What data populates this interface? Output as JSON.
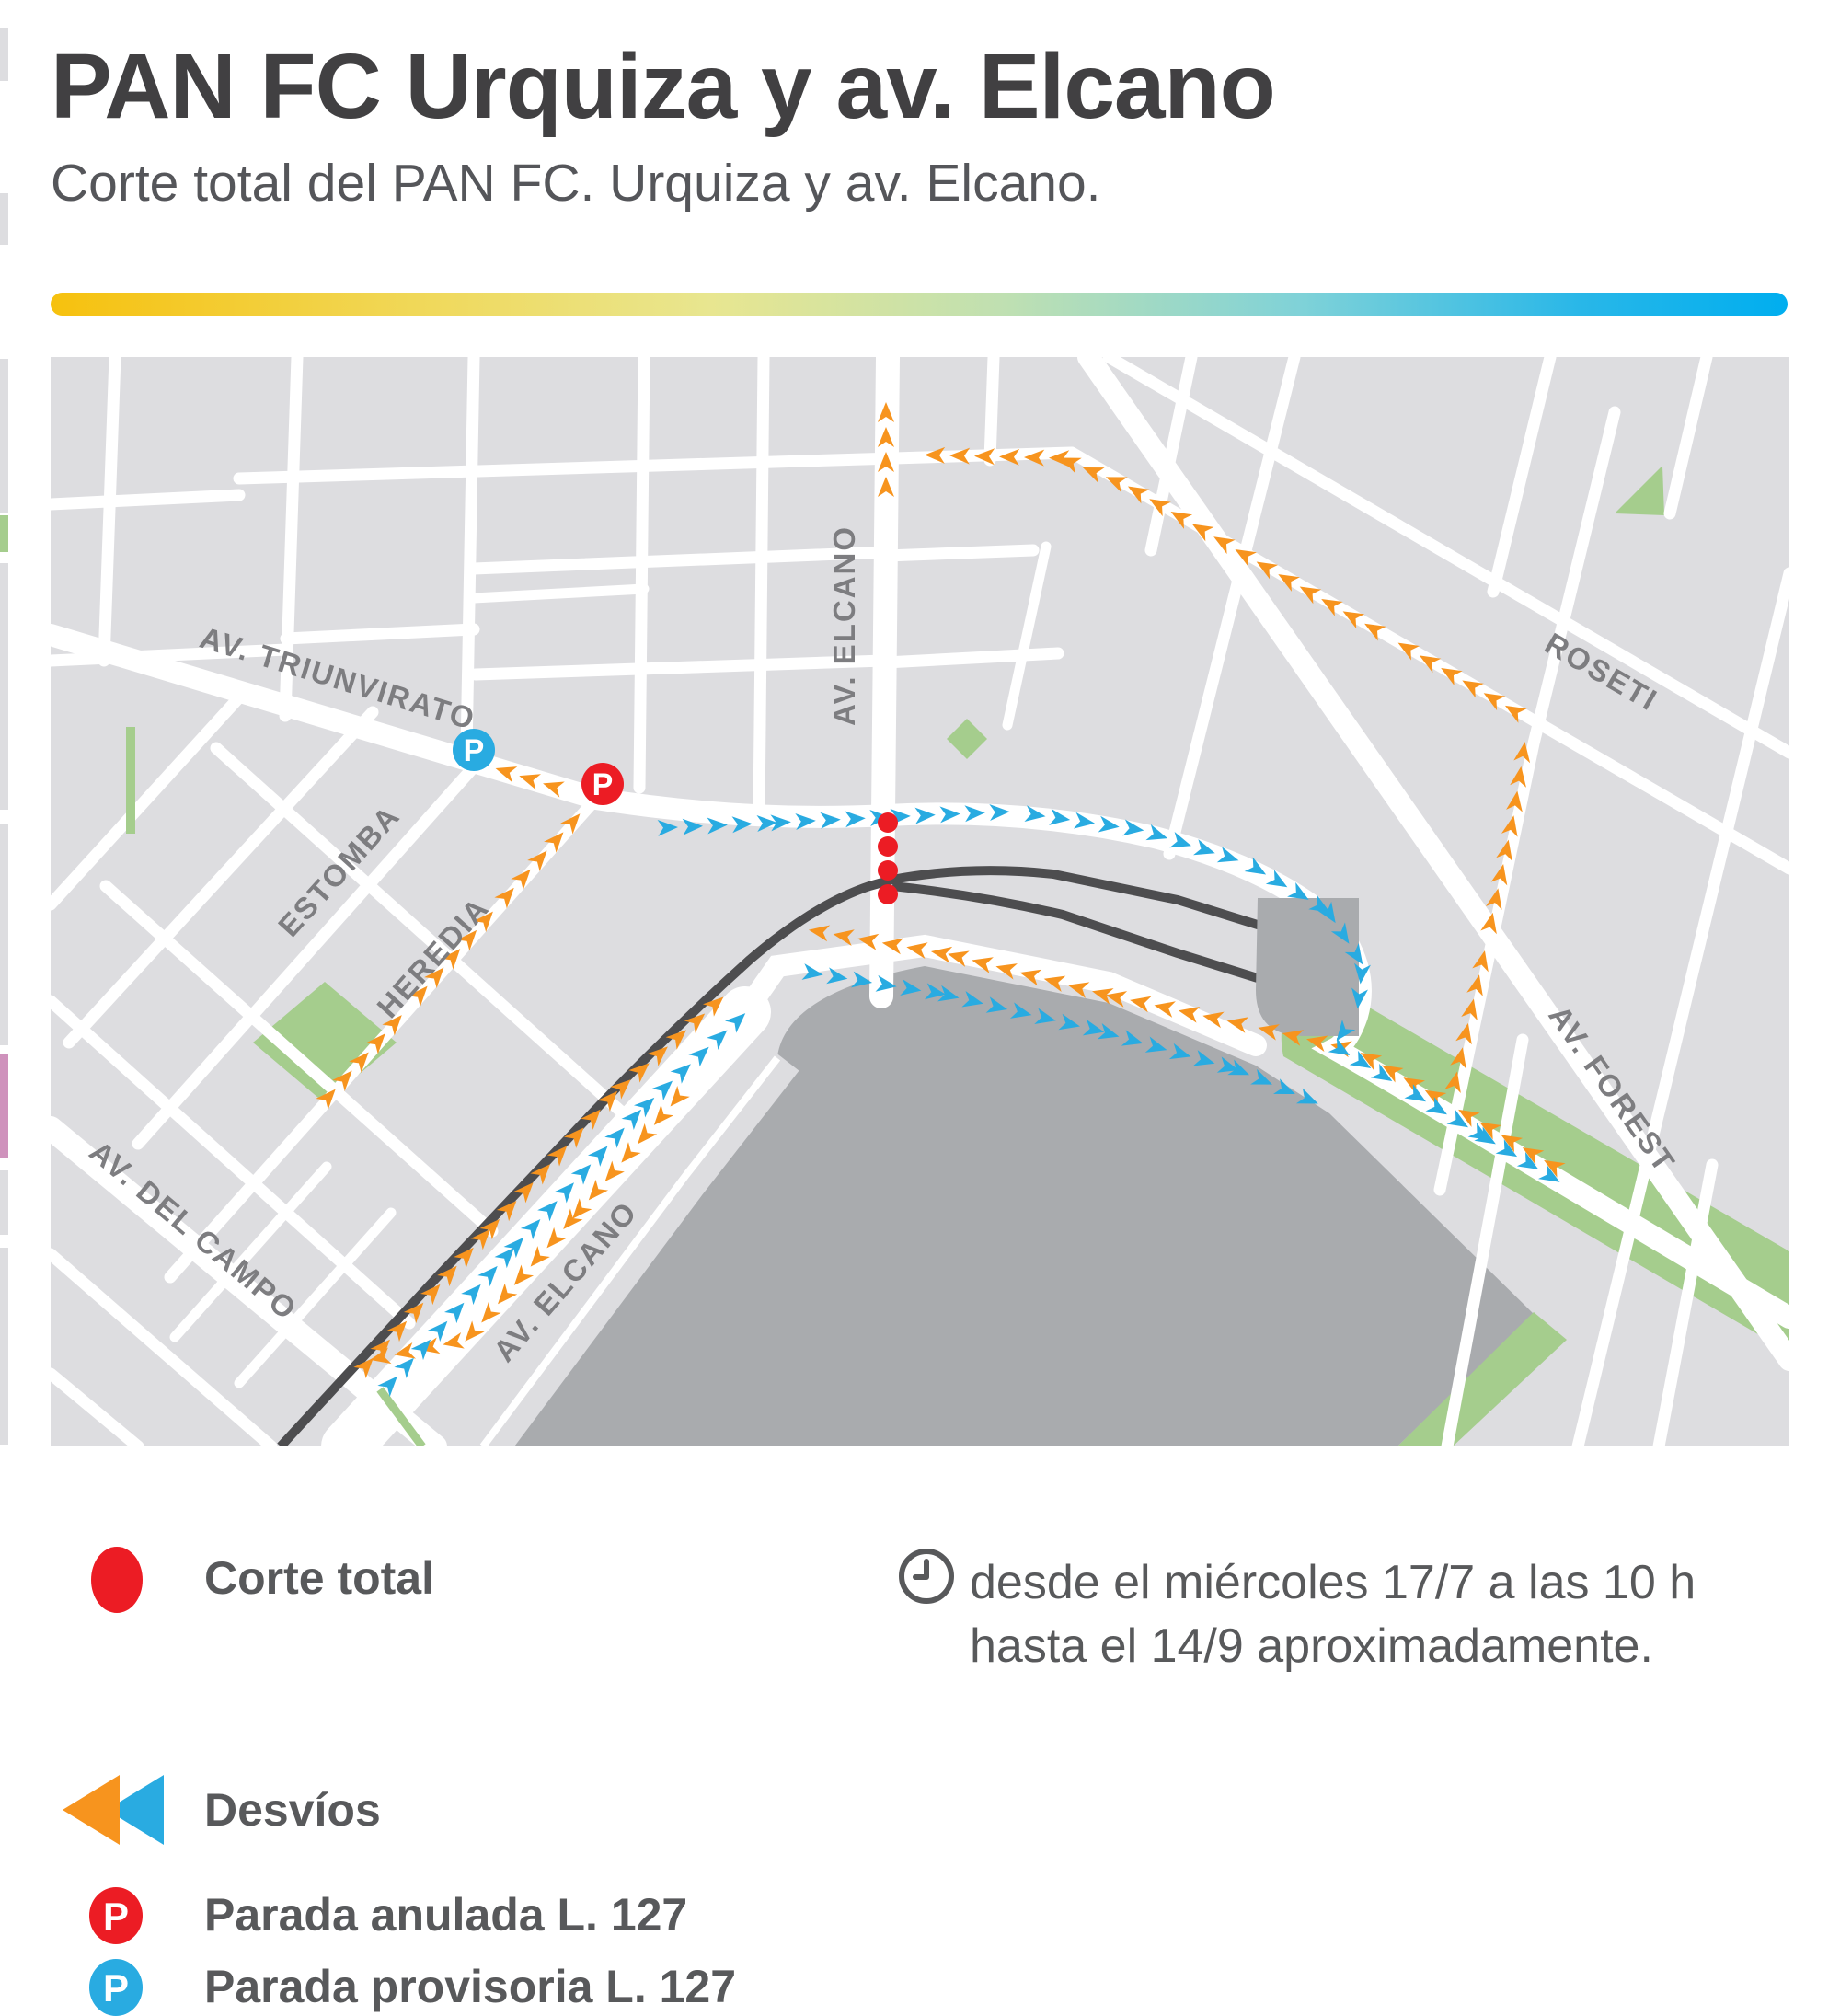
{
  "header": {
    "title": "PAN FC Urquiza y av. Elcano",
    "subtitle": "Corte total del PAN FC. Urquiza y av. Elcano."
  },
  "map": {
    "street_labels": {
      "triunvirato": "AV. TRIUNVIRATO",
      "estomba": "ESTOMBA",
      "heredia": "HEREDIA",
      "del_campo": "AV. DEL CAMPO",
      "elcano_north": "AV. ELCANO",
      "elcano_southwest": "AV. ELCANO",
      "roseti": "ROSETI",
      "forest": "AV. FOREST"
    },
    "markers": {
      "parada_anulada_letter": "P",
      "parada_provisoria_letter": "P"
    },
    "colors": {
      "detour_orange": "#F7941E",
      "detour_blue": "#29ABE1",
      "corte_red": "#EC1C24",
      "stop_blue": "#29ABE1",
      "park_green": "#A5CD8D",
      "yard_gray": "#A9ABAE",
      "block_gray": "#DDDDDE",
      "rail_dark": "#4D4D4F"
    }
  },
  "legend": {
    "corte_label": "Corte total",
    "desvios_label": "Desvíos",
    "anulada_label": "Parada anulada L. 127",
    "provisoria_label": "Parada provisoria L. 127",
    "schedule_line1": "desde el miércoles 17/7 a las 10 h",
    "schedule_line2": "hasta el 14/9 aproximadamente."
  }
}
